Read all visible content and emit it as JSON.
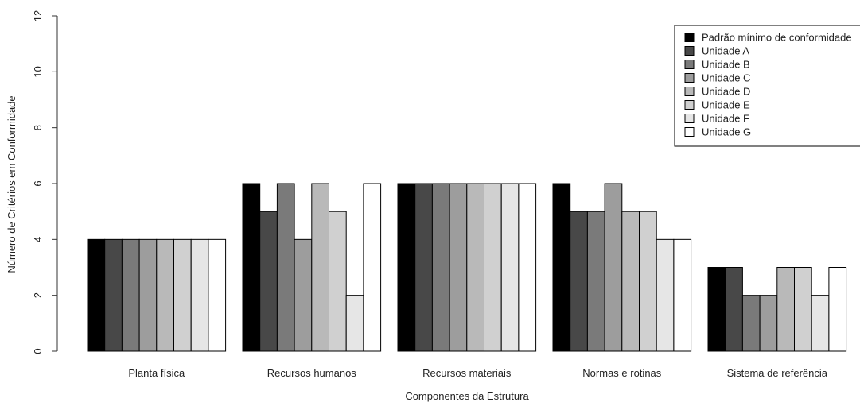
{
  "chart_data": {
    "type": "bar",
    "title": "",
    "xlabel": "Componentes da Estrutura",
    "ylabel": "Número de Critérios em Conformidade",
    "ylim": [
      0,
      12
    ],
    "yticks": [
      "0",
      "2",
      "4",
      "6",
      "8",
      "10",
      "12"
    ],
    "categories": [
      "Planta física",
      "Recursos humanos",
      "Recursos materiais",
      "Normas e rotinas",
      "Sistema de referência"
    ],
    "series": [
      {
        "name": "Padrão mínimo de conformidade",
        "color": "#000000",
        "values": [
          4,
          6,
          6,
          6,
          3
        ]
      },
      {
        "name": "Unidade A",
        "color": "#484848",
        "values": [
          4,
          5,
          6,
          5,
          3
        ]
      },
      {
        "name": "Unidade B",
        "color": "#7a7a7a",
        "values": [
          4,
          6,
          6,
          5,
          2
        ]
      },
      {
        "name": "Unidade C",
        "color": "#9d9d9d",
        "values": [
          4,
          4,
          6,
          6,
          2
        ]
      },
      {
        "name": "Unidade D",
        "color": "#b9b9b9",
        "values": [
          4,
          6,
          6,
          5,
          3
        ]
      },
      {
        "name": "Unidade E",
        "color": "#d0d0d0",
        "values": [
          4,
          5,
          6,
          5,
          3
        ]
      },
      {
        "name": "Unidade F",
        "color": "#e6e6e6",
        "values": [
          4,
          2,
          6,
          4,
          2
        ]
      },
      {
        "name": "Unidade G",
        "color": "#ffffff",
        "values": [
          4,
          6,
          6,
          4,
          3
        ]
      }
    ],
    "legend": "top-right",
    "grid": false
  }
}
